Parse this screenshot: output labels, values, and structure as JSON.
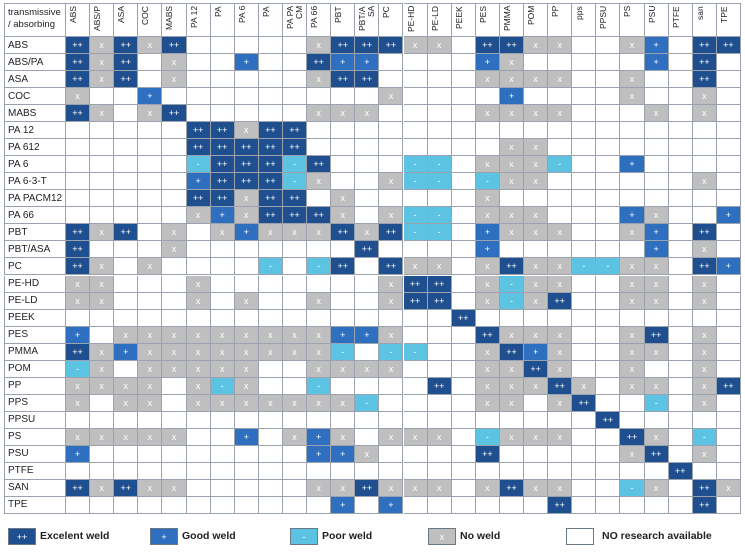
{
  "header": {
    "corner": "transmissive / absorbing",
    "columns": [
      "ABS",
      "ABS/P",
      "ASA",
      "COC",
      "MABS",
      "PA 12",
      "PA",
      "PA 6",
      "PA",
      "PA PACM",
      "PA 66",
      "PBT",
      "PBT/ASA",
      "PC",
      "PE-HD",
      "PE-LD",
      "PEEK",
      "PES",
      "PMMA",
      "POM",
      "PP",
      "pps",
      "PPSU",
      "PS",
      "PSU",
      "PTFE",
      "san",
      "TPE"
    ]
  },
  "rows": [
    {
      "label": "ABS",
      "cells": [
        "++",
        "x",
        "++",
        "x",
        "++",
        null,
        null,
        null,
        null,
        null,
        "x",
        "++",
        "++",
        "++",
        "x",
        "x",
        null,
        "++",
        "++",
        "x",
        "x",
        null,
        null,
        "x",
        "+",
        null,
        "++",
        "++"
      ]
    },
    {
      "label": "ABS/PA",
      "cells": [
        "++",
        "x",
        "++",
        null,
        "x",
        null,
        null,
        "+",
        null,
        null,
        "++",
        "+",
        "+",
        null,
        null,
        null,
        null,
        "+",
        "x",
        null,
        null,
        null,
        null,
        null,
        "+",
        null,
        "++",
        null
      ]
    },
    {
      "label": "ASA",
      "cells": [
        "++",
        "x",
        "++",
        null,
        "x",
        null,
        null,
        null,
        null,
        null,
        "x",
        "++",
        "++",
        null,
        null,
        null,
        null,
        "x",
        "x",
        "x",
        "x",
        null,
        null,
        "x",
        null,
        null,
        "++",
        null
      ]
    },
    {
      "label": "COC",
      "cells": [
        "x",
        null,
        null,
        "+",
        null,
        null,
        null,
        null,
        null,
        null,
        null,
        null,
        null,
        "x",
        null,
        null,
        null,
        null,
        "+",
        null,
        null,
        null,
        null,
        "x",
        null,
        null,
        "x",
        null
      ]
    },
    {
      "label": "MABS",
      "cells": [
        "++",
        "x",
        null,
        "x",
        "++",
        null,
        null,
        null,
        null,
        null,
        "x",
        "x",
        "x",
        null,
        null,
        null,
        null,
        "x",
        "x",
        "x",
        "x",
        null,
        null,
        null,
        "x",
        null,
        "x",
        null
      ]
    },
    {
      "label": "PA 12",
      "cells": [
        null,
        null,
        null,
        null,
        null,
        "++",
        "++",
        "x",
        "++",
        "++",
        null,
        null,
        null,
        null,
        null,
        null,
        null,
        null,
        null,
        null,
        null,
        null,
        null,
        null,
        null,
        null,
        null,
        null
      ]
    },
    {
      "label": "PA 612",
      "cells": [
        null,
        null,
        null,
        null,
        null,
        "++",
        "++",
        "++",
        "++",
        "++",
        null,
        null,
        null,
        null,
        null,
        null,
        null,
        null,
        "x",
        "x",
        null,
        null,
        null,
        null,
        null,
        null,
        null,
        null
      ]
    },
    {
      "label": "PA 6",
      "cells": [
        null,
        null,
        null,
        null,
        null,
        "-",
        "++",
        "++",
        "++",
        "-",
        "++",
        null,
        null,
        null,
        "-",
        "-",
        null,
        "x",
        "x",
        "x",
        "-",
        null,
        null,
        "+",
        null,
        null,
        null,
        null
      ]
    },
    {
      "label": "PA 6-3-T",
      "cells": [
        null,
        null,
        null,
        null,
        null,
        "+",
        "++",
        "++",
        "++",
        "-",
        "x",
        null,
        null,
        "x",
        "-",
        "-",
        null,
        "-",
        "x",
        "x",
        null,
        null,
        null,
        null,
        null,
        null,
        "x",
        null
      ]
    },
    {
      "label": "PA PACM12",
      "cells": [
        null,
        null,
        null,
        null,
        null,
        "++",
        "++",
        "x",
        "++",
        "++",
        null,
        "x",
        null,
        null,
        null,
        null,
        null,
        "x",
        null,
        null,
        null,
        null,
        null,
        null,
        null,
        null,
        null,
        null
      ]
    },
    {
      "label": "PA 66",
      "cells": [
        null,
        null,
        null,
        null,
        null,
        "x",
        "+",
        "x",
        "++",
        "++",
        "++",
        "x",
        null,
        "x",
        "-",
        "-",
        null,
        "x",
        "x",
        "x",
        null,
        null,
        null,
        "+",
        "x",
        null,
        null,
        "+"
      ]
    },
    {
      "label": "PBT",
      "cells": [
        "++",
        "x",
        "++",
        null,
        "x",
        null,
        "x",
        "+",
        "x",
        "x",
        "x",
        "++",
        "x",
        "++",
        "-",
        "-",
        null,
        "+",
        "x",
        "x",
        "x",
        null,
        null,
        "x",
        "+",
        null,
        "++",
        null
      ]
    },
    {
      "label": "PBT/ASA",
      "cells": [
        "++",
        null,
        null,
        null,
        "x",
        null,
        null,
        null,
        null,
        null,
        null,
        null,
        "++",
        null,
        null,
        null,
        null,
        "+",
        null,
        null,
        null,
        null,
        null,
        null,
        "+",
        null,
        "x",
        null
      ]
    },
    {
      "label": "PC",
      "cells": [
        "++",
        "x",
        null,
        "x",
        null,
        null,
        null,
        null,
        "-",
        null,
        "-",
        "++",
        null,
        "++",
        "x",
        "x",
        null,
        "x",
        "++",
        "x",
        "x",
        "-",
        "-",
        "x",
        "x",
        null,
        "++",
        "+"
      ]
    },
    {
      "label": "PE-HD",
      "cells": [
        "x",
        "x",
        null,
        null,
        null,
        "x",
        null,
        null,
        null,
        null,
        null,
        null,
        null,
        "x",
        "++",
        "++",
        null,
        "x",
        "-",
        "x",
        "x",
        null,
        null,
        "x",
        "x",
        null,
        "x",
        null
      ]
    },
    {
      "label": "PE-LD",
      "cells": [
        "x",
        "x",
        null,
        null,
        null,
        "x",
        null,
        "x",
        null,
        null,
        "x",
        null,
        null,
        "x",
        "++",
        "++",
        null,
        "x",
        "-",
        "x",
        "++",
        null,
        null,
        "x",
        "x",
        null,
        "x",
        null
      ]
    },
    {
      "label": "PEEK",
      "cells": [
        null,
        null,
        null,
        null,
        null,
        null,
        null,
        null,
        null,
        null,
        null,
        null,
        null,
        null,
        null,
        null,
        "++",
        null,
        null,
        null,
        null,
        null,
        null,
        null,
        null,
        null,
        null,
        null
      ]
    },
    {
      "label": "PES",
      "cells": [
        "+",
        null,
        "x",
        "x",
        "x",
        "x",
        "x",
        "x",
        "x",
        "x",
        "x",
        "+",
        "+",
        "x",
        null,
        null,
        null,
        "++",
        "x",
        "x",
        "x",
        null,
        null,
        "x",
        "++",
        null,
        "x",
        null
      ]
    },
    {
      "label": "PMMA",
      "cells": [
        "++",
        "x",
        "+",
        "x",
        "x",
        "x",
        "x",
        "x",
        "x",
        "x",
        "x",
        "-",
        null,
        "-",
        "-",
        null,
        null,
        "x",
        "++",
        "+",
        "x",
        null,
        null,
        "x",
        "x",
        null,
        "x",
        null
      ]
    },
    {
      "label": "POM",
      "cells": [
        "-",
        "x",
        null,
        "x",
        "x",
        "x",
        "x",
        "x",
        null,
        null,
        "x",
        "x",
        "x",
        "x",
        null,
        null,
        null,
        "x",
        "x",
        "++",
        "x",
        null,
        null,
        "x",
        null,
        null,
        "x",
        null
      ]
    },
    {
      "label": "PP",
      "cells": [
        "x",
        "x",
        "x",
        "x",
        null,
        "x",
        "-",
        "x",
        null,
        null,
        "-",
        null,
        null,
        null,
        null,
        "++",
        null,
        "x",
        "x",
        "x",
        "++",
        "x",
        null,
        "x",
        "x",
        null,
        "x",
        "++"
      ]
    },
    {
      "label": "PPS",
      "cells": [
        "x",
        null,
        "x",
        "x",
        null,
        "x",
        "x",
        "x",
        "x",
        "x",
        "x",
        "x",
        "-",
        null,
        null,
        null,
        null,
        "x",
        "x",
        null,
        "x",
        "++",
        null,
        null,
        "-",
        null,
        "x",
        null
      ]
    },
    {
      "label": "PPSU",
      "cells": [
        null,
        null,
        null,
        null,
        null,
        null,
        null,
        null,
        null,
        null,
        null,
        null,
        null,
        null,
        null,
        null,
        null,
        null,
        null,
        null,
        null,
        null,
        "++",
        null,
        null,
        null,
        null,
        null
      ]
    },
    {
      "label": "PS",
      "cells": [
        "x",
        "x",
        "x",
        "x",
        "x",
        null,
        null,
        "+",
        null,
        "x",
        "+",
        "x",
        null,
        "x",
        "x",
        "x",
        null,
        "-",
        "x",
        "x",
        "x",
        null,
        null,
        "++",
        "x",
        null,
        "-",
        null
      ]
    },
    {
      "label": "PSU",
      "cells": [
        "+",
        null,
        null,
        null,
        null,
        null,
        null,
        null,
        null,
        null,
        "+",
        "+",
        "x",
        null,
        null,
        null,
        null,
        "++",
        null,
        null,
        null,
        null,
        null,
        "x",
        "++",
        null,
        "x",
        null
      ]
    },
    {
      "label": "PTFE",
      "cells": [
        null,
        null,
        null,
        null,
        null,
        null,
        null,
        null,
        null,
        null,
        null,
        null,
        null,
        null,
        null,
        null,
        null,
        null,
        null,
        null,
        null,
        null,
        null,
        null,
        null,
        "++",
        null,
        null
      ]
    },
    {
      "label": "SAN",
      "cells": [
        "++",
        "x",
        "++",
        "x",
        "x",
        null,
        null,
        null,
        null,
        null,
        "x",
        "x",
        "++",
        "x",
        "x",
        "x",
        null,
        "x",
        "++",
        "x",
        "x",
        null,
        null,
        "-",
        "x",
        null,
        "++",
        "x"
      ]
    },
    {
      "label": "TPE",
      "cells": [
        null,
        null,
        null,
        null,
        null,
        null,
        null,
        null,
        null,
        null,
        null,
        "+",
        null,
        "+",
        null,
        null,
        null,
        null,
        null,
        null,
        "++",
        null,
        null,
        null,
        null,
        null,
        "++",
        null
      ]
    }
  ],
  "legend": [
    {
      "symbol": "++",
      "label": "Excelent weld",
      "color": "#1f4f8f"
    },
    {
      "symbol": "+",
      "label": "Good weld",
      "color": "#2f6fbf"
    },
    {
      "symbol": "-",
      "label": "Poor weld",
      "color": "#5cc3e2"
    },
    {
      "symbol": "x",
      "label": "No weld",
      "color": "#bfbfbf"
    },
    {
      "label": "NO research available",
      "color": "#ffffff"
    }
  ]
}
